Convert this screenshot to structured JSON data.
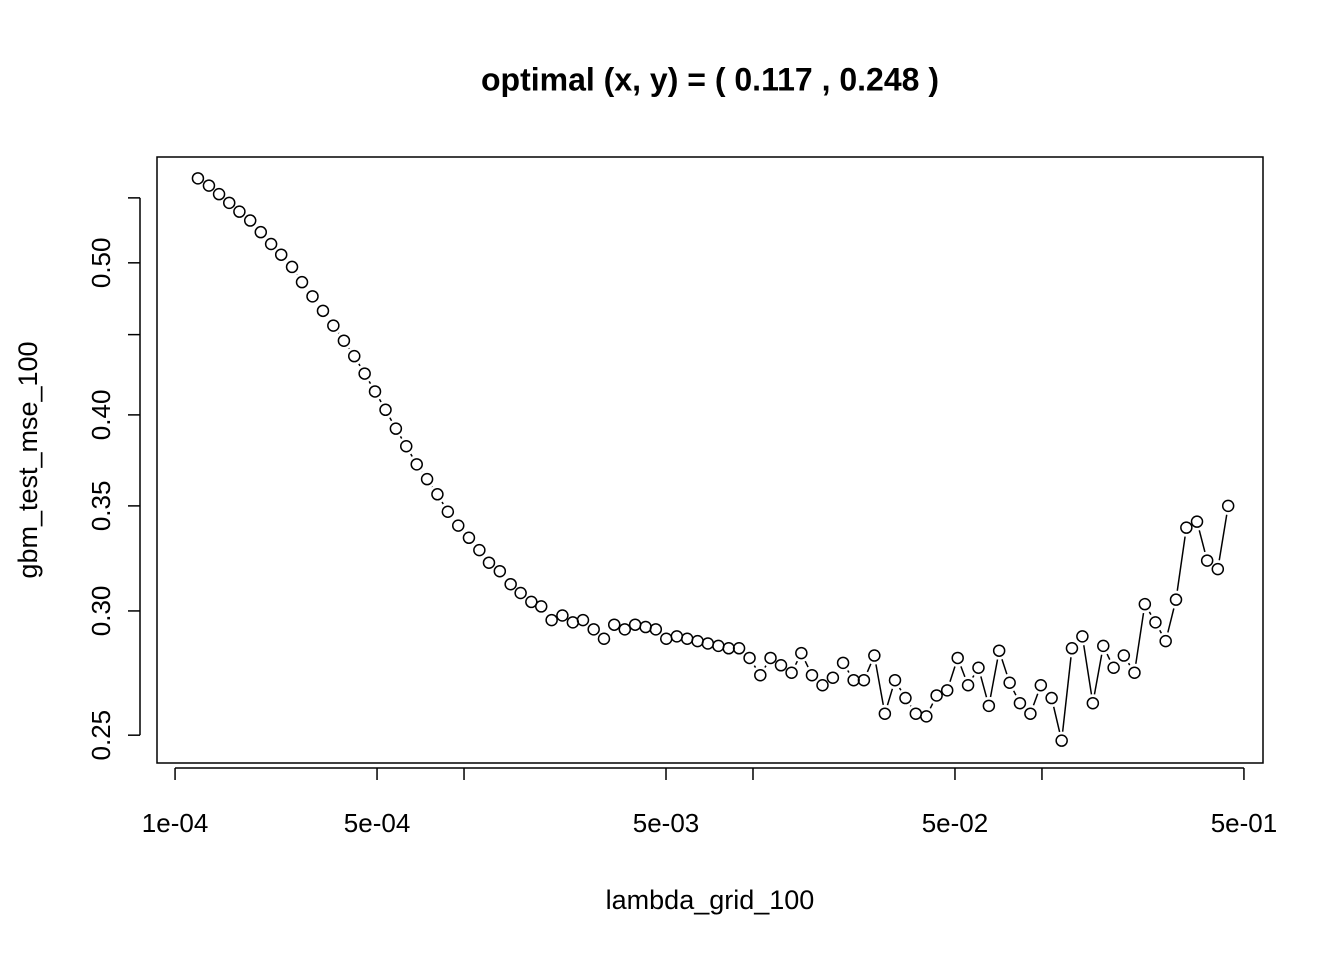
{
  "chart_data": {
    "type": "scatter",
    "title": "optimal (x, y) = ( 0.117 ,  0.248 )",
    "x_label": "lambda_grid_100",
    "y_label": "gbm_test_mse_100",
    "log_x": true,
    "log_y": true,
    "connect": true,
    "color": "#000000",
    "xlim": [
      8.66e-05,
      0.582
    ],
    "ylim": [
      0.24,
      0.584
    ],
    "xticks": [
      {
        "value": 0.0001,
        "label": "1e-04"
      },
      {
        "value": 0.0005,
        "label": "5e-04"
      },
      {
        "value": 0.005,
        "label": "5e-03"
      },
      {
        "value": 0.05,
        "label": "5e-02"
      },
      {
        "value": 0.5,
        "label": "5e-01"
      }
    ],
    "xminor_ticks": [
      0.001,
      0.01,
      0.1
    ],
    "yticks": [
      0.25,
      {
        "value": 0.3,
        "label": "0.30"
      },
      0.35,
      {
        "value": 0.4,
        "label": "0.40"
      },
      {
        "value": 0.5,
        "label": "0.50"
      }
    ],
    "yminor_ticks": [
      0.45,
      0.55
    ],
    "x": [
      0.00012,
      0.000131,
      0.000142,
      0.000154,
      0.000167,
      0.000182,
      0.000198,
      0.000215,
      0.000233,
      0.000254,
      0.000275,
      0.000299,
      0.000325,
      0.000353,
      0.000384,
      0.000417,
      0.000453,
      0.000492,
      0.000535,
      0.000581,
      0.000631,
      0.000686,
      0.000745,
      0.000809,
      0.000879,
      0.000955,
      0.00104,
      0.00113,
      0.00122,
      0.00133,
      0.00145,
      0.00157,
      0.00171,
      0.00185,
      0.00201,
      0.00219,
      0.00238,
      0.00258,
      0.00281,
      0.00305,
      0.00331,
      0.0036,
      0.00391,
      0.00425,
      0.00461,
      0.00501,
      0.00545,
      0.00592,
      0.00643,
      0.00698,
      0.00759,
      0.00824,
      0.00895,
      0.00973,
      0.0106,
      0.0115,
      0.0125,
      0.0136,
      0.0147,
      0.016,
      0.0174,
      0.0189,
      0.0205,
      0.0223,
      0.0242,
      0.0263,
      0.0286,
      0.031,
      0.0337,
      0.0366,
      0.0398,
      0.0432,
      0.047,
      0.0511,
      0.0555,
      0.0603,
      0.0655,
      0.0711,
      0.0773,
      0.0839,
      0.0912,
      0.0991,
      0.108,
      0.117,
      0.127,
      0.138,
      0.15,
      0.163,
      0.177,
      0.192,
      0.209,
      0.227,
      0.247,
      0.268,
      0.291,
      0.316,
      0.344,
      0.373,
      0.406,
      0.441
    ],
    "values": [
      0.566,
      0.56,
      0.553,
      0.546,
      0.539,
      0.532,
      0.523,
      0.514,
      0.506,
      0.497,
      0.486,
      0.476,
      0.466,
      0.456,
      0.446,
      0.436,
      0.425,
      0.414,
      0.403,
      0.392,
      0.382,
      0.372,
      0.364,
      0.356,
      0.347,
      0.34,
      0.334,
      0.328,
      0.322,
      0.318,
      0.312,
      0.308,
      0.304,
      0.302,
      0.296,
      0.298,
      0.295,
      0.296,
      0.292,
      0.288,
      0.294,
      0.292,
      0.294,
      0.293,
      0.292,
      0.288,
      0.289,
      0.288,
      0.287,
      0.286,
      0.285,
      0.284,
      0.284,
      0.28,
      0.273,
      0.28,
      0.277,
      0.274,
      0.282,
      0.273,
      0.269,
      0.272,
      0.278,
      0.271,
      0.271,
      0.281,
      0.258,
      0.271,
      0.264,
      0.258,
      0.257,
      0.265,
      0.267,
      0.28,
      0.269,
      0.276,
      0.261,
      0.283,
      0.27,
      0.262,
      0.258,
      0.269,
      0.264,
      0.248,
      0.284,
      0.289,
      0.262,
      0.285,
      0.276,
      0.281,
      0.274,
      0.303,
      0.295,
      0.287,
      0.305,
      0.339,
      0.342,
      0.323,
      0.319,
      0.35
    ]
  }
}
